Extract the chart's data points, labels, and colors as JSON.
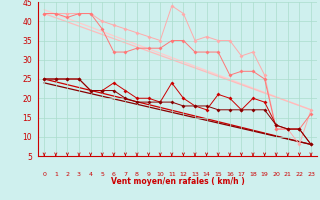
{
  "xlabel": "Vent moyen/en rafales ( km/h )",
  "xlim": [
    -0.5,
    23.5
  ],
  "ylim": [
    5,
    45
  ],
  "yticks": [
    5,
    10,
    15,
    20,
    25,
    30,
    35,
    40,
    45
  ],
  "xticks": [
    0,
    1,
    2,
    3,
    4,
    5,
    6,
    7,
    8,
    9,
    10,
    11,
    12,
    13,
    14,
    15,
    16,
    17,
    18,
    19,
    20,
    21,
    22,
    23
  ],
  "bg_color": "#cff0ee",
  "grid_color": "#aaddcc",
  "line1_x": [
    0,
    1,
    2,
    3,
    4,
    5,
    6,
    7,
    8,
    9,
    10,
    11,
    12,
    13,
    14,
    15,
    16,
    17,
    18,
    19,
    20,
    21,
    22,
    23
  ],
  "line1_y": [
    42,
    42,
    42,
    42,
    42,
    40,
    39,
    38,
    37,
    36,
    35,
    44,
    42,
    35,
    36,
    35,
    35,
    31,
    32,
    26,
    12,
    12,
    8,
    17
  ],
  "line1_color": "#ffaaaa",
  "line2_x": [
    0,
    1,
    2,
    3,
    4,
    5,
    6,
    7,
    8,
    9,
    10,
    11,
    12,
    13,
    14,
    15,
    16,
    17,
    18,
    19,
    20,
    21,
    22,
    23
  ],
  "line2_y": [
    42,
    42,
    41,
    42,
    42,
    38,
    32,
    32,
    33,
    33,
    33,
    35,
    35,
    32,
    32,
    32,
    26,
    27,
    27,
    25,
    12,
    12,
    12,
    16
  ],
  "line2_color": "#ff7777",
  "trendline1_x": [
    0,
    23
  ],
  "trendline1_y": [
    43,
    17
  ],
  "trendline1_color": "#ffcccc",
  "trendline2_x": [
    0,
    23
  ],
  "trendline2_y": [
    42,
    17
  ],
  "trendline2_color": "#ffbbbb",
  "line3_x": [
    0,
    1,
    2,
    3,
    4,
    5,
    6,
    7,
    8,
    9,
    10,
    11,
    12,
    13,
    14,
    15,
    16,
    17,
    18,
    19,
    20,
    21,
    22,
    23
  ],
  "line3_y": [
    25,
    25,
    25,
    25,
    22,
    22,
    24,
    22,
    20,
    20,
    19,
    24,
    20,
    18,
    17,
    21,
    20,
    17,
    20,
    19,
    13,
    12,
    12,
    8
  ],
  "line3_color": "#cc0000",
  "line4_x": [
    0,
    1,
    2,
    3,
    4,
    5,
    6,
    7,
    8,
    9,
    10,
    11,
    12,
    13,
    14,
    15,
    16,
    17,
    18,
    19,
    20,
    21,
    22,
    23
  ],
  "line4_y": [
    25,
    25,
    25,
    25,
    22,
    22,
    22,
    20,
    19,
    19,
    19,
    19,
    18,
    18,
    18,
    17,
    17,
    17,
    17,
    17,
    13,
    12,
    12,
    8
  ],
  "line4_color": "#880000",
  "trendline3_x": [
    0,
    23
  ],
  "trendline3_y": [
    25,
    8
  ],
  "trendline3_color": "#cc0000",
  "trendline4_x": [
    0,
    23
  ],
  "trendline4_y": [
    24,
    8
  ],
  "trendline4_color": "#880000",
  "arrow_color": "#cc0000"
}
